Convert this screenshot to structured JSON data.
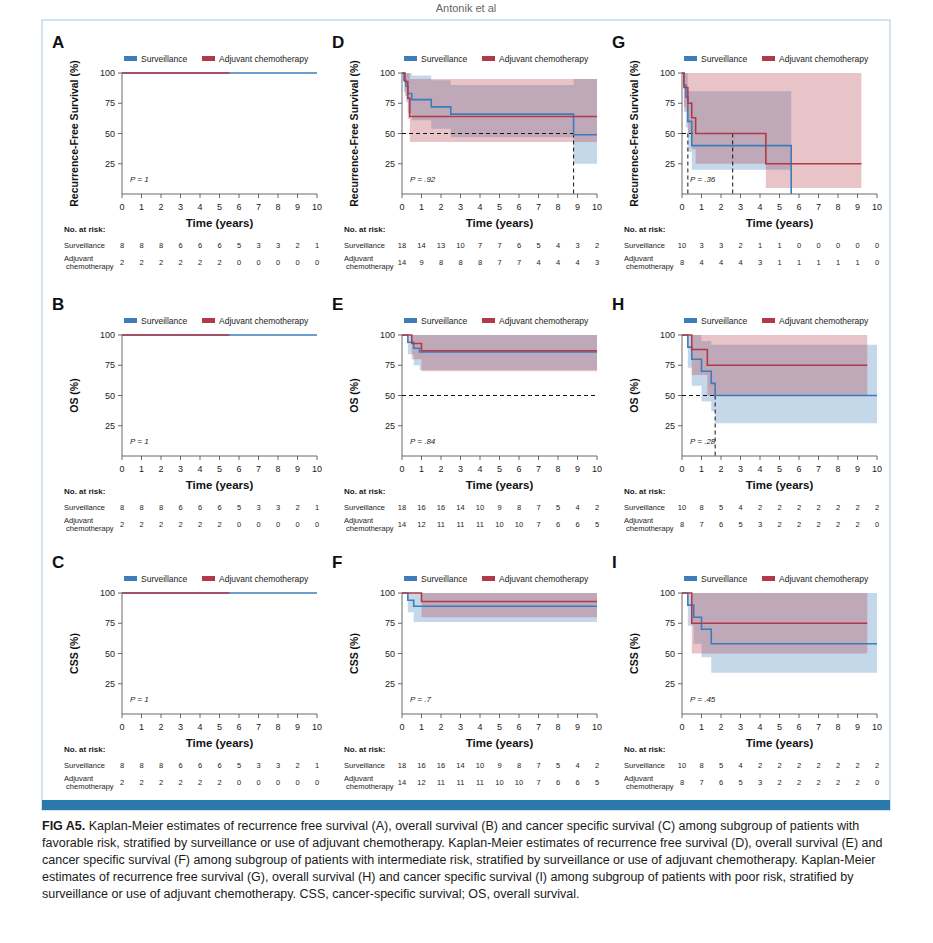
{
  "header": "Antonik et al",
  "caption": {
    "label": "FIG A5.",
    "text": "Kaplan-Meier estimates of recurrence free survival (A), overall survival (B) and cancer specific survival (C) among subgroup of patients with favorable risk, stratified by surveillance or use of adjuvant chemotherapy. Kaplan-Meier estimates of recurrence free survival (D), overall survival (E) and cancer specific survival (F) among subgroup of patients with intermediate risk, stratified by surveillance or use of adjuvant chemotherapy. Kaplan-Meier estimates of recurrence free survival (G), overall survival (H) and cancer specific survival (I) among subgroup of patients with poor risk, stratified by surveillance or use of adjuvant chemotherapy. CSS, cancer-specific survival; OS, overall survival."
  },
  "chart_data": [
    {
      "type": "step",
      "title": "A",
      "y_label": "Recurrence-Free Survival (%)",
      "x_label": "Time (years)",
      "annotation": "P = 1",
      "xlim": [
        0,
        10
      ],
      "ylim": [
        0,
        100
      ],
      "xticks": [
        0,
        1,
        2,
        3,
        4,
        5,
        6,
        7,
        8,
        9,
        10
      ],
      "yticks": [
        25,
        50,
        75,
        100
      ],
      "legend": "top",
      "risk_table_title": "No. at risk:",
      "series": [
        {
          "name": "Surveillance",
          "color": "#3b7dbb",
          "x": [
            0,
            10
          ],
          "values": [
            100,
            100
          ],
          "lower": [
            100,
            100
          ],
          "upper": [
            100,
            100
          ],
          "at_risk": [
            8,
            8,
            8,
            6,
            6,
            6,
            5,
            3,
            3,
            2,
            1
          ]
        },
        {
          "name": "Adjuvant chemotherapy",
          "color": "#b23a48",
          "x": [
            0,
            5.5
          ],
          "values": [
            100,
            100
          ],
          "lower": [
            100,
            100
          ],
          "upper": [
            100,
            100
          ],
          "at_risk": [
            2,
            2,
            2,
            2,
            2,
            2,
            0,
            0,
            0,
            0,
            0
          ]
        }
      ]
    },
    {
      "type": "step",
      "title": "B",
      "y_label": "OS (%)",
      "x_label": "Time (years)",
      "annotation": "P = 1",
      "xlim": [
        0,
        10
      ],
      "ylim": [
        0,
        100
      ],
      "xticks": [
        0,
        1,
        2,
        3,
        4,
        5,
        6,
        7,
        8,
        9,
        10
      ],
      "yticks": [
        25,
        50,
        75,
        100
      ],
      "legend": "top",
      "risk_table_title": "No. at risk:",
      "series": [
        {
          "name": "Surveillance",
          "color": "#3b7dbb",
          "x": [
            0,
            10
          ],
          "values": [
            100,
            100
          ],
          "lower": [
            100,
            100
          ],
          "upper": [
            100,
            100
          ],
          "at_risk": [
            8,
            8,
            8,
            6,
            6,
            6,
            5,
            3,
            3,
            2,
            1
          ]
        },
        {
          "name": "Adjuvant chemotherapy",
          "color": "#b23a48",
          "x": [
            0,
            5.5
          ],
          "values": [
            100,
            100
          ],
          "lower": [
            100,
            100
          ],
          "upper": [
            100,
            100
          ],
          "at_risk": [
            2,
            2,
            2,
            2,
            2,
            2,
            0,
            0,
            0,
            0,
            0
          ]
        }
      ]
    },
    {
      "type": "step",
      "title": "C",
      "y_label": "CSS (%)",
      "x_label": "Time (years)",
      "annotation": "P = 1",
      "xlim": [
        0,
        10
      ],
      "ylim": [
        0,
        100
      ],
      "xticks": [
        0,
        1,
        2,
        3,
        4,
        5,
        6,
        7,
        8,
        9,
        10
      ],
      "yticks": [
        25,
        50,
        75,
        100
      ],
      "legend": "top",
      "risk_table_title": "No. at risk:",
      "series": [
        {
          "name": "Surveillance",
          "color": "#3b7dbb",
          "x": [
            0,
            10
          ],
          "values": [
            100,
            100
          ],
          "lower": [
            100,
            100
          ],
          "upper": [
            100,
            100
          ],
          "at_risk": [
            8,
            8,
            8,
            6,
            6,
            6,
            5,
            3,
            3,
            2,
            1
          ]
        },
        {
          "name": "Adjuvant chemotherapy",
          "color": "#b23a48",
          "x": [
            0,
            5.5
          ],
          "values": [
            100,
            100
          ],
          "lower": [
            100,
            100
          ],
          "upper": [
            100,
            100
          ],
          "at_risk": [
            2,
            2,
            2,
            2,
            2,
            2,
            0,
            0,
            0,
            0,
            0
          ]
        }
      ]
    },
    {
      "type": "step",
      "title": "D",
      "y_label": "Recurrence-Free Survival (%)",
      "x_label": "Time (years)",
      "annotation": "P = .92",
      "xlim": [
        0,
        10
      ],
      "ylim": [
        0,
        100
      ],
      "xticks": [
        0,
        1,
        2,
        3,
        4,
        5,
        6,
        7,
        8,
        9,
        10
      ],
      "yticks": [
        25,
        50,
        75,
        100
      ],
      "legend": "top",
      "risk_table_title": "No. at risk:",
      "median_line": {
        "y": 50,
        "x": [
          8.8
        ]
      },
      "series": [
        {
          "name": "Surveillance",
          "color": "#3b7dbb",
          "x": [
            0,
            0.1,
            0.2,
            0.3,
            0.5,
            1.5,
            2.5,
            8.8,
            10
          ],
          "values": [
            100,
            94,
            89,
            83,
            78,
            72,
            66,
            49,
            49
          ],
          "lower": [
            100,
            84,
            76,
            67,
            61,
            54,
            47,
            25,
            25
          ],
          "upper": [
            100,
            100,
            100,
            100,
            98,
            94,
            90,
            95,
            95
          ],
          "at_risk": [
            18,
            14,
            13,
            10,
            7,
            7,
            6,
            5,
            4,
            3,
            2
          ]
        },
        {
          "name": "Adjuvant chemotherapy",
          "color": "#b23a48",
          "x": [
            0,
            0.15,
            0.3,
            0.4,
            10
          ],
          "values": [
            100,
            93,
            79,
            64,
            64
          ],
          "lower": [
            100,
            81,
            62,
            43,
            43
          ],
          "upper": [
            100,
            100,
            100,
            95,
            95
          ],
          "at_risk": [
            14,
            9,
            8,
            8,
            8,
            7,
            7,
            4,
            4,
            4,
            3
          ]
        }
      ]
    },
    {
      "type": "step",
      "title": "E",
      "y_label": "OS (%)",
      "x_label": "Time (years)",
      "annotation": "P = .84",
      "xlim": [
        0,
        10
      ],
      "ylim": [
        0,
        100
      ],
      "xticks": [
        0,
        1,
        2,
        3,
        4,
        5,
        6,
        7,
        8,
        9,
        10
      ],
      "yticks": [
        25,
        50,
        75,
        100
      ],
      "legend": "top",
      "risk_table_title": "No. at risk:",
      "median_line": {
        "y": 50,
        "x": []
      },
      "series": [
        {
          "name": "Surveillance",
          "color": "#3b7dbb",
          "x": [
            0,
            0.3,
            0.6,
            0.9,
            10
          ],
          "values": [
            100,
            94,
            89,
            86,
            86
          ],
          "lower": [
            100,
            84,
            75,
            71,
            71
          ],
          "upper": [
            100,
            100,
            100,
            100,
            100
          ],
          "at_risk": [
            18,
            16,
            16,
            14,
            10,
            9,
            8,
            7,
            5,
            4,
            2
          ]
        },
        {
          "name": "Adjuvant chemotherapy",
          "color": "#b23a48",
          "x": [
            0,
            0.5,
            1.0,
            10
          ],
          "values": [
            100,
            93,
            87,
            87
          ],
          "lower": [
            100,
            80,
            70,
            70
          ],
          "upper": [
            100,
            100,
            100,
            100
          ],
          "at_risk": [
            14,
            12,
            11,
            11,
            11,
            10,
            10,
            7,
            6,
            6,
            5
          ]
        }
      ]
    },
    {
      "type": "step",
      "title": "F",
      "y_label": "CSS (%)",
      "x_label": "Time (years)",
      "annotation": "P = .7",
      "xlim": [
        0,
        10
      ],
      "ylim": [
        0,
        100
      ],
      "xticks": [
        0,
        1,
        2,
        3,
        4,
        5,
        6,
        7,
        8,
        9,
        10
      ],
      "yticks": [
        25,
        50,
        75,
        100
      ],
      "legend": "top",
      "risk_table_title": "No. at risk:",
      "series": [
        {
          "name": "Surveillance",
          "color": "#3b7dbb",
          "x": [
            0,
            0.3,
            0.6,
            10
          ],
          "values": [
            100,
            94,
            89,
            89
          ],
          "lower": [
            100,
            84,
            76,
            76
          ],
          "upper": [
            100,
            100,
            100,
            100
          ],
          "at_risk": [
            18,
            16,
            16,
            14,
            10,
            9,
            8,
            7,
            5,
            4,
            2
          ]
        },
        {
          "name": "Adjuvant chemotherapy",
          "color": "#b23a48",
          "x": [
            0,
            1.0,
            10
          ],
          "values": [
            100,
            93,
            93
          ],
          "lower": [
            100,
            80,
            80
          ],
          "upper": [
            100,
            100,
            100
          ],
          "at_risk": [
            14,
            12,
            11,
            11,
            11,
            10,
            10,
            7,
            6,
            6,
            5
          ]
        }
      ]
    },
    {
      "type": "step",
      "title": "G",
      "y_label": "Recurrence-Free Survival (%)",
      "x_label": "Time (years)",
      "annotation": "P = .36",
      "xlim": [
        0,
        10
      ],
      "ylim": [
        0,
        100
      ],
      "xticks": [
        0,
        1,
        2,
        3,
        4,
        5,
        6,
        7,
        8,
        9,
        10
      ],
      "yticks": [
        25,
        50,
        75,
        100
      ],
      "legend": "top",
      "risk_table_title": "No. at risk:",
      "median_line": {
        "y": 50,
        "x": [
          0.3,
          2.6
        ]
      },
      "series": [
        {
          "name": "Surveillance",
          "color": "#3b7dbb",
          "x": [
            0,
            0.1,
            0.2,
            0.3,
            0.5,
            5.6
          ],
          "values": [
            100,
            90,
            80,
            60,
            40,
            0
          ],
          "lower": [
            100,
            72,
            55,
            35,
            20,
            0
          ],
          "upper": [
            100,
            100,
            100,
            85,
            85,
            0
          ],
          "at_risk": [
            10,
            3,
            3,
            2,
            1,
            1,
            0,
            0,
            0,
            0,
            0
          ]
        },
        {
          "name": "Adjuvant chemotherapy",
          "color": "#b23a48",
          "x": [
            0,
            0.1,
            0.3,
            0.5,
            0.7,
            4.3,
            9.2
          ],
          "values": [
            100,
            88,
            75,
            63,
            50,
            25,
            25
          ],
          "lower": [
            100,
            68,
            50,
            37,
            25,
            5,
            5
          ],
          "upper": [
            100,
            100,
            100,
            100,
            100,
            100,
            100
          ],
          "at_risk": [
            8,
            4,
            4,
            4,
            3,
            1,
            1,
            1,
            1,
            1,
            0
          ]
        }
      ]
    },
    {
      "type": "step",
      "title": "H",
      "y_label": "OS (%)",
      "x_label": "Time (years)",
      "annotation": "P = .28",
      "xlim": [
        0,
        10
      ],
      "ylim": [
        0,
        100
      ],
      "xticks": [
        0,
        1,
        2,
        3,
        4,
        5,
        6,
        7,
        8,
        9,
        10
      ],
      "yticks": [
        25,
        50,
        75,
        100
      ],
      "legend": "top",
      "risk_table_title": "No. at risk:",
      "median_line": {
        "y": 50,
        "x": [
          1.7
        ]
      },
      "series": [
        {
          "name": "Surveillance",
          "color": "#3b7dbb",
          "x": [
            0,
            0.3,
            0.5,
            1.0,
            1.5,
            1.7,
            10
          ],
          "values": [
            100,
            90,
            80,
            70,
            60,
            50,
            50
          ],
          "lower": [
            100,
            73,
            58,
            45,
            37,
            27,
            27
          ],
          "upper": [
            100,
            100,
            100,
            95,
            92,
            92,
            92
          ],
          "at_risk": [
            10,
            8,
            5,
            4,
            2,
            2,
            2,
            2,
            2,
            2,
            2
          ]
        },
        {
          "name": "Adjuvant chemotherapy",
          "color": "#b23a48",
          "x": [
            0,
            0.5,
            1.3,
            9.5
          ],
          "values": [
            100,
            88,
            75,
            75
          ],
          "lower": [
            100,
            67,
            50,
            50
          ],
          "upper": [
            100,
            100,
            100,
            100
          ],
          "at_risk": [
            8,
            7,
            6,
            5,
            3,
            2,
            2,
            2,
            2,
            2,
            0
          ]
        }
      ]
    },
    {
      "type": "step",
      "title": "I",
      "y_label": "CSS (%)",
      "x_label": "Time (years)",
      "annotation": "P = .45",
      "xlim": [
        0,
        10
      ],
      "ylim": [
        0,
        100
      ],
      "xticks": [
        0,
        1,
        2,
        3,
        4,
        5,
        6,
        7,
        8,
        9,
        10
      ],
      "yticks": [
        25,
        50,
        75,
        100
      ],
      "legend": "top",
      "risk_table_title": "No. at risk:",
      "series": [
        {
          "name": "Surveillance",
          "color": "#3b7dbb",
          "x": [
            0,
            0.3,
            0.6,
            1.0,
            1.5,
            10
          ],
          "values": [
            100,
            90,
            80,
            70,
            58,
            58
          ],
          "lower": [
            100,
            73,
            58,
            47,
            34,
            34
          ],
          "upper": [
            100,
            100,
            100,
            100,
            100,
            100
          ],
          "at_risk": [
            10,
            8,
            5,
            4,
            2,
            2,
            2,
            2,
            2,
            2,
            2
          ]
        },
        {
          "name": "Adjuvant chemotherapy",
          "color": "#b23a48",
          "x": [
            0,
            0.5,
            9.5
          ],
          "values": [
            100,
            75,
            75
          ],
          "lower": [
            100,
            50,
            50
          ],
          "upper": [
            100,
            100,
            100
          ],
          "at_risk": [
            8,
            7,
            6,
            5,
            3,
            2,
            2,
            2,
            2,
            2,
            0
          ]
        }
      ]
    }
  ]
}
